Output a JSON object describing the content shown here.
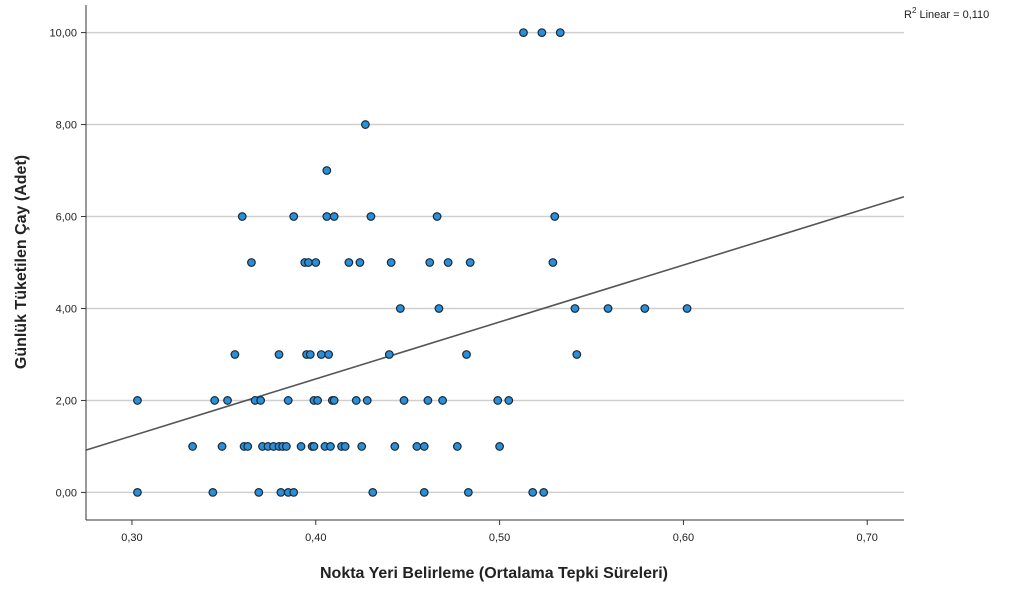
{
  "chart_data": {
    "type": "scatter",
    "xlabel": "Nokta Yeri Belirleme (Ortalama Tepki Süreleri)",
    "ylabel": "Günlük Tüketilen Çay (Adet)",
    "xlim": [
      0.275,
      0.72
    ],
    "ylim": [
      -0.6,
      10.6
    ],
    "x_ticks": [
      0.3,
      0.4,
      0.5,
      0.6,
      0.7
    ],
    "x_tick_labels": [
      "0,30",
      "0,40",
      "0,50",
      "0,60",
      "0,70"
    ],
    "y_ticks": [
      0,
      2,
      4,
      6,
      8,
      10
    ],
    "y_tick_labels": [
      "0,00",
      "2,00",
      "4,00",
      "6,00",
      "8,00",
      "10,00"
    ],
    "grid": "horizontal",
    "point_color": "#2a8fd6",
    "point_stroke": "#1a2a3a",
    "fit_line": {
      "type": "linear",
      "color": "#555555",
      "points": [
        [
          0.275,
          0.92
        ],
        [
          0.72,
          6.43
        ]
      ],
      "r2_prefix": "R",
      "r2_sup": "2",
      "r2_text": " Linear = 0,110"
    },
    "points": [
      [
        0.303,
        2
      ],
      [
        0.303,
        0
      ],
      [
        0.333,
        1
      ],
      [
        0.344,
        0
      ],
      [
        0.345,
        2
      ],
      [
        0.349,
        1
      ],
      [
        0.352,
        2
      ],
      [
        0.356,
        3
      ],
      [
        0.36,
        6
      ],
      [
        0.361,
        1
      ],
      [
        0.363,
        1
      ],
      [
        0.365,
        5
      ],
      [
        0.367,
        2
      ],
      [
        0.369,
        0
      ],
      [
        0.37,
        2
      ],
      [
        0.371,
        1
      ],
      [
        0.374,
        1
      ],
      [
        0.377,
        1
      ],
      [
        0.38,
        3
      ],
      [
        0.38,
        1
      ],
      [
        0.381,
        0
      ],
      [
        0.382,
        1
      ],
      [
        0.384,
        1
      ],
      [
        0.385,
        2
      ],
      [
        0.385,
        0
      ],
      [
        0.388,
        6
      ],
      [
        0.388,
        0
      ],
      [
        0.392,
        1
      ],
      [
        0.394,
        5
      ],
      [
        0.395,
        3
      ],
      [
        0.396,
        5
      ],
      [
        0.397,
        3
      ],
      [
        0.398,
        1
      ],
      [
        0.399,
        1
      ],
      [
        0.399,
        2
      ],
      [
        0.4,
        5
      ],
      [
        0.401,
        2
      ],
      [
        0.403,
        3
      ],
      [
        0.405,
        1
      ],
      [
        0.406,
        7
      ],
      [
        0.406,
        6
      ],
      [
        0.407,
        3
      ],
      [
        0.408,
        1
      ],
      [
        0.409,
        2
      ],
      [
        0.41,
        6
      ],
      [
        0.41,
        2
      ],
      [
        0.414,
        1
      ],
      [
        0.416,
        1
      ],
      [
        0.418,
        5
      ],
      [
        0.422,
        2
      ],
      [
        0.424,
        5
      ],
      [
        0.425,
        1
      ],
      [
        0.427,
        8
      ],
      [
        0.428,
        2
      ],
      [
        0.43,
        6
      ],
      [
        0.431,
        0
      ],
      [
        0.44,
        3
      ],
      [
        0.441,
        5
      ],
      [
        0.443,
        1
      ],
      [
        0.446,
        4
      ],
      [
        0.448,
        2
      ],
      [
        0.455,
        1
      ],
      [
        0.459,
        0
      ],
      [
        0.459,
        1
      ],
      [
        0.461,
        2
      ],
      [
        0.462,
        5
      ],
      [
        0.466,
        6
      ],
      [
        0.467,
        4
      ],
      [
        0.469,
        2
      ],
      [
        0.472,
        5
      ],
      [
        0.477,
        1
      ],
      [
        0.482,
        3
      ],
      [
        0.483,
        0
      ],
      [
        0.484,
        5
      ],
      [
        0.499,
        2
      ],
      [
        0.5,
        1
      ],
      [
        0.505,
        2
      ],
      [
        0.513,
        10
      ],
      [
        0.518,
        0
      ],
      [
        0.523,
        10
      ],
      [
        0.524,
        0
      ],
      [
        0.529,
        5
      ],
      [
        0.53,
        6
      ],
      [
        0.533,
        10
      ],
      [
        0.541,
        4
      ],
      [
        0.542,
        3
      ],
      [
        0.559,
        4
      ],
      [
        0.579,
        4
      ],
      [
        0.602,
        4
      ]
    ]
  }
}
